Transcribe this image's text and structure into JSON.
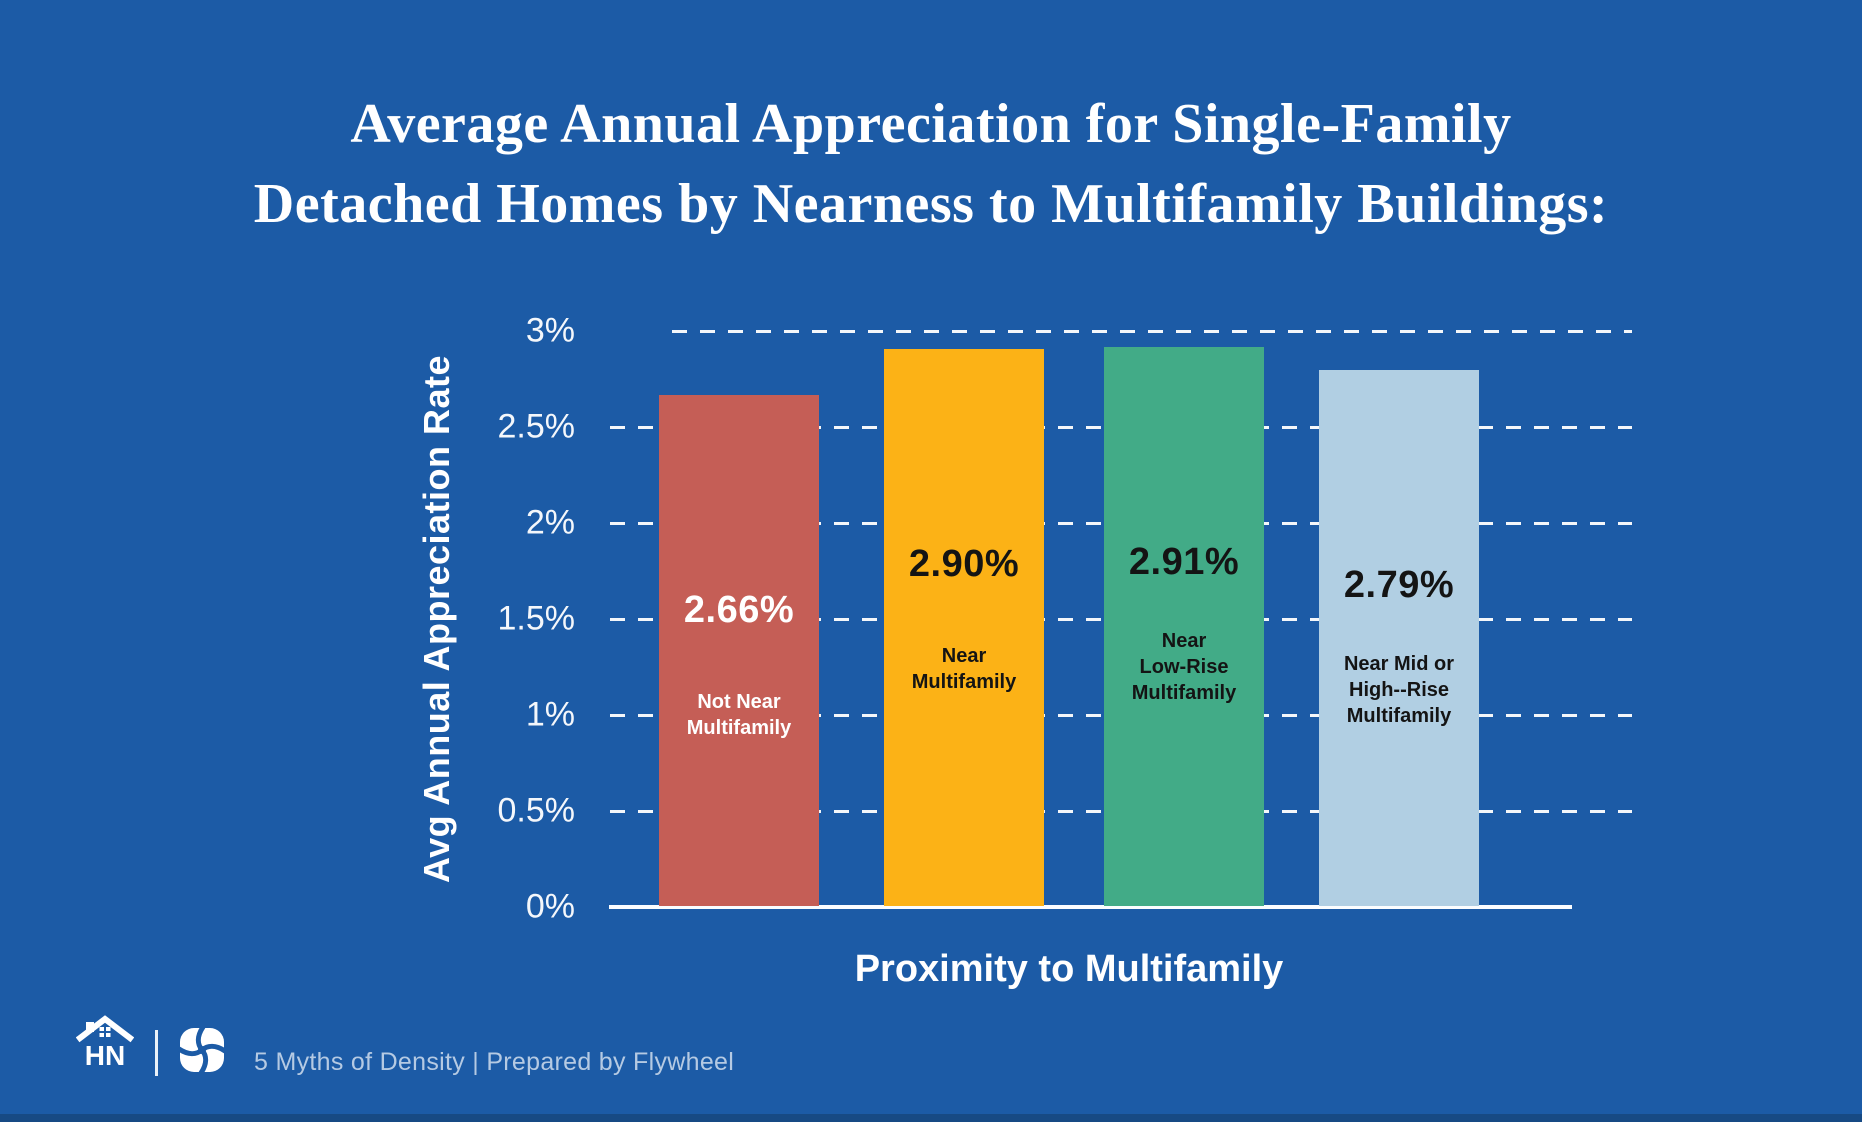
{
  "header": {
    "line1": "Average Annual Appreciation for Single-Family",
    "line2": "Detached Homes by Nearness to Multifamily Buildings:"
  },
  "chart_data": {
    "type": "bar",
    "title": "Average Annual Appreciation for Single-Family Detached Homes by Nearness to Multifamily Buildings:",
    "xlabel": "Proximity to Multifamily",
    "ylabel": "Avg Annual Appreciation Rate",
    "ylim": [
      0,
      3
    ],
    "yticks": [
      0,
      0.5,
      1,
      1.5,
      2,
      2.5,
      3
    ],
    "ytick_labels": [
      "0%",
      "0.5%",
      "1%",
      "1.5%",
      "2%",
      "2.5%",
      "3%"
    ],
    "grid": "horizontal-dashed",
    "legend": "none",
    "categories": [
      "Not Near Multifamily",
      "Near Multifamily",
      "Near Low-Rise Multifamily",
      "Near Mid or High--Rise Multifamily"
    ],
    "values": [
      2.66,
      2.9,
      2.91,
      2.79
    ],
    "bars": [
      {
        "value": 2.66,
        "value_label": "2.66%",
        "label_lines": [
          "Not Near",
          "Multifamily"
        ],
        "color": "#c55e56",
        "text_color": "#ffffff"
      },
      {
        "value": 2.9,
        "value_label": "2.90%",
        "label_lines": [
          "Near",
          "Multifamily"
        ],
        "color": "#fcb216",
        "text_color": "#141414"
      },
      {
        "value": 2.91,
        "value_label": "2.91%",
        "label_lines": [
          "Near",
          "Low-Rise",
          "Multifamily"
        ],
        "color": "#42ab87",
        "text_color": "#141414"
      },
      {
        "value": 2.79,
        "value_label": "2.79%",
        "label_lines": [
          "Near Mid or",
          "High--Rise",
          "Multifamily"
        ],
        "color": "#b1cfe3",
        "text_color": "#141414"
      }
    ]
  },
  "footer": {
    "logo_text": "HN",
    "credit_text": "5 Myths of Density  |  Prepared by Flywheel"
  },
  "colors": {
    "background": "#1c5ba6",
    "bar_red": "#c55e56",
    "bar_orange": "#fcb216",
    "bar_green": "#42ab87",
    "bar_light_blue": "#b1cfe3",
    "title_text": "#ffffff",
    "footer_text": "#b5cae3"
  }
}
